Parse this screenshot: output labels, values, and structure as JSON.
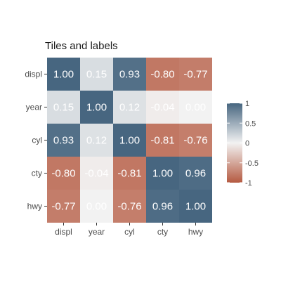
{
  "chart_data": {
    "type": "heatmap",
    "title": "Tiles and labels",
    "x_categories": [
      "displ",
      "year",
      "cyl",
      "cty",
      "hwy"
    ],
    "y_categories": [
      "displ",
      "year",
      "cyl",
      "cty",
      "hwy"
    ],
    "values": [
      [
        1.0,
        0.15,
        0.93,
        -0.8,
        -0.77
      ],
      [
        0.15,
        1.0,
        0.12,
        -0.04,
        0.0
      ],
      [
        0.93,
        0.12,
        1.0,
        -0.81,
        -0.76
      ],
      [
        -0.8,
        -0.04,
        -0.81,
        1.0,
        0.96
      ],
      [
        -0.77,
        0.0,
        -0.76,
        0.96,
        1.0
      ]
    ],
    "labels": [
      [
        "1.00",
        "0.15",
        "0.93",
        "-0.80",
        "-0.77"
      ],
      [
        "0.15",
        "1.00",
        "0.12",
        "-0.04",
        "0.00"
      ],
      [
        "0.93",
        "0.12",
        "1.00",
        "-0.81",
        "-0.76"
      ],
      [
        "-0.80",
        "-0.04",
        "-0.81",
        "1.00",
        "0.96"
      ],
      [
        "-0.77",
        "0.00",
        "-0.76",
        "0.96",
        "1.00"
      ]
    ],
    "color_range": [
      -1,
      1
    ],
    "colors": {
      "low": "#b55a41",
      "mid": "#f2f2f2",
      "high": "#476680"
    },
    "legend": {
      "position": "right",
      "ticks": [
        1,
        0.5,
        0,
        -0.5,
        -1
      ],
      "tick_labels": [
        "1",
        "0.5",
        "0",
        "-0.5",
        "-1"
      ]
    }
  }
}
